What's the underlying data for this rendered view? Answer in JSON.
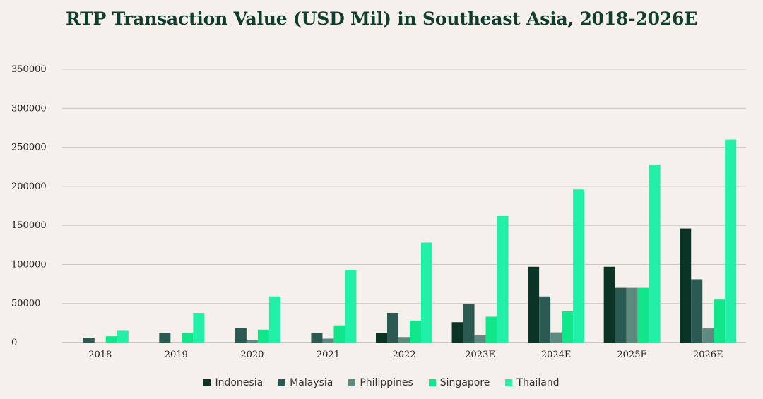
{
  "chart_data": {
    "type": "bar",
    "title": "RTP Transaction Value (USD Mil) in Southeast Asia, 2018-2026E",
    "xlabel": "",
    "ylabel": "",
    "categories": [
      "2018",
      "2019",
      "2020",
      "2021",
      "2022",
      "2023E",
      "2024E",
      "2025E",
      "2026E"
    ],
    "ylim": [
      0,
      350000
    ],
    "yticks": [
      "0",
      "50000",
      "100000",
      "150000",
      "200000",
      "250000",
      "300000",
      "350000"
    ],
    "grid": true,
    "legend_position": "bottom",
    "series": [
      {
        "name": "Indonesia",
        "color": "#0b3326",
        "values": [
          0,
          0,
          0,
          0,
          12000,
          26000,
          97000,
          97000,
          146000
        ]
      },
      {
        "name": "Malaysia",
        "color": "#2a5a52",
        "values": [
          6000,
          12000,
          18500,
          12000,
          38000,
          49000,
          59000,
          70000,
          81000
        ]
      },
      {
        "name": "Philippines",
        "color": "#5f8a80",
        "values": [
          0,
          0,
          3000,
          5000,
          7000,
          9000,
          13000,
          70000,
          18000
        ]
      },
      {
        "name": "Singapore",
        "color": "#12e68a",
        "values": [
          8000,
          12000,
          16500,
          22000,
          28000,
          33000,
          40000,
          70000,
          55000
        ]
      },
      {
        "name": "Thailand",
        "color": "#22f0a8",
        "values": [
          15000,
          38000,
          59000,
          93000,
          128000,
          162000,
          196000,
          228000,
          260000
        ]
      }
    ]
  }
}
